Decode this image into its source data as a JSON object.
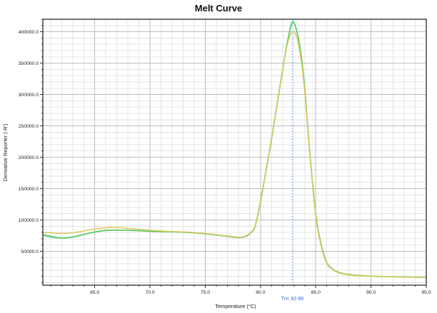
{
  "chart_data": {
    "type": "line",
    "title": "Melt Curve",
    "xlabel": "Temperature (°C)",
    "ylabel": "Derivative Reporter (-R')",
    "xlim": [
      60.3,
      95.0
    ],
    "ylim": [
      -4000,
      420000
    ],
    "grid_on": true,
    "legend": "none",
    "x_major_ticks": [
      65,
      70,
      75,
      80,
      85,
      90,
      95
    ],
    "x_major_labels": [
      "65.0",
      "70.0",
      "75.0",
      "80.0",
      "85.0",
      "90.0",
      "95.0"
    ],
    "x_minor_step": 1,
    "y_major_ticks": [
      50000,
      100000,
      150000,
      200000,
      250000,
      300000,
      350000,
      400000
    ],
    "y_major_labels": [
      "50000.0",
      "100000.0",
      "150000.0",
      "200000.0",
      "250000.0",
      "300000.0",
      "350000.0",
      "400000.0"
    ],
    "y_minor_step": 10000,
    "colors": {
      "minor_grid": "#e4e4e4",
      "major_grid": "#bdbdbd",
      "frame": "#3a3a3a",
      "tick": "#333333",
      "tm_line": "#5a8fdd",
      "tm_text": "#3a6fd6"
    },
    "tm": {
      "label": "Tm: 82.88",
      "x": 82.88
    },
    "x": [
      60.3,
      61,
      62,
      63,
      64,
      65,
      66,
      67,
      68,
      69,
      70,
      71,
      72,
      73,
      74,
      75,
      76,
      77,
      78,
      78.5,
      79,
      79.5,
      80,
      80.5,
      81,
      81.5,
      82,
      82.5,
      82.9,
      83.3,
      83.7,
      84,
      84.5,
      85,
      85.5,
      86,
      86.5,
      87,
      87.5,
      88,
      89,
      90,
      91,
      92,
      93,
      94,
      95
    ],
    "series": [
      {
        "name": "melt-curve-teal",
        "color": "#8ad8bd",
        "values": [
          75500,
          72500,
          71000,
          72500,
          76500,
          80500,
          83000,
          83500,
          83200,
          82700,
          81700,
          81200,
          80700,
          80200,
          79200,
          77700,
          75700,
          73700,
          71700,
          72700,
          77500,
          89000,
          128000,
          178000,
          228000,
          283000,
          338000,
          391000,
          417000,
          399000,
          358000,
          308000,
          198000,
          108000,
          58000,
          31000,
          21500,
          16500,
          14000,
          12500,
          11000,
          10200,
          9700,
          9300,
          9000,
          8600,
          8300
        ]
      },
      {
        "name": "melt-curve-green",
        "color": "#59c957",
        "values": [
          77000,
          74000,
          71500,
          73000,
          77000,
          81000,
          83500,
          84000,
          83500,
          83000,
          82000,
          81500,
          81000,
          80500,
          79500,
          78000,
          76000,
          74000,
          72000,
          73000,
          78000,
          90000,
          130000,
          180000,
          230000,
          285000,
          340000,
          390000,
          415000,
          400000,
          360000,
          310000,
          200000,
          110000,
          60000,
          32000,
          22000,
          17000,
          14500,
          13000,
          11500,
          10500,
          10000,
          9500,
          9200,
          8800,
          8500
        ]
      },
      {
        "name": "melt-curve-yellow",
        "color": "#dcc95e",
        "values": [
          80500,
          79500,
          78500,
          79500,
          82500,
          85500,
          87500,
          88000,
          86500,
          85000,
          83500,
          82500,
          81500,
          81000,
          80000,
          78500,
          76500,
          74500,
          72500,
          73500,
          78500,
          91000,
          131000,
          181000,
          231000,
          286000,
          341000,
          385000,
          400000,
          390000,
          352000,
          303000,
          196000,
          106000,
          57000,
          30500,
          21000,
          16200,
          13800,
          12400,
          10900,
          10100,
          9600,
          9200,
          8900,
          8600,
          8200
        ]
      }
    ]
  }
}
